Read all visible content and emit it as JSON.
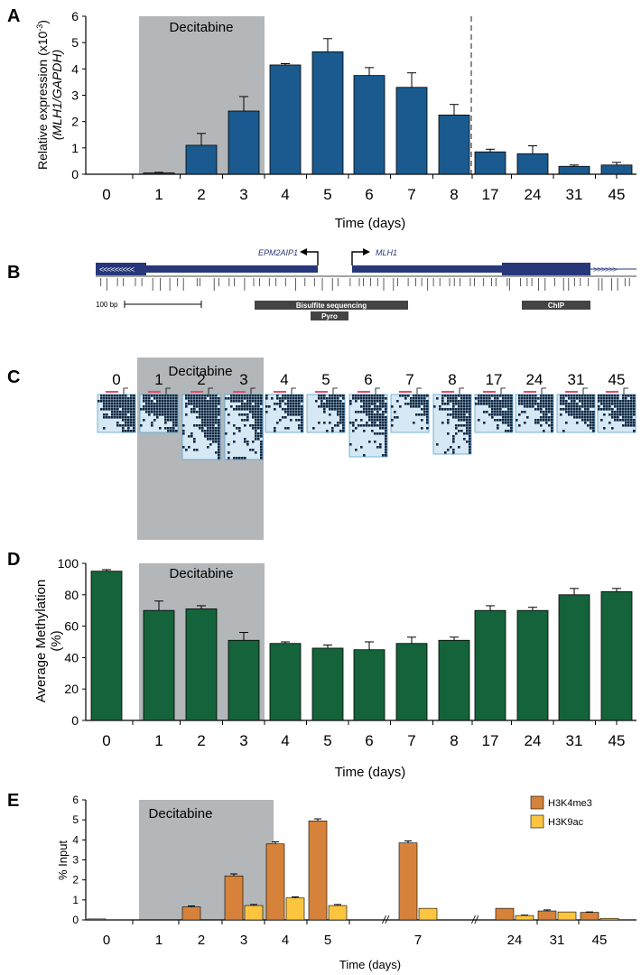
{
  "colors": {
    "expression": "#1a5a8e",
    "methylation": "#15633a",
    "h3k4me3": "#d6823a",
    "h3k9ac": "#fcc53f",
    "shade": "#b3b7ba",
    "gene": "#27377a",
    "methylated_cpg": "#0f2741",
    "unmethylated_cpg": "#d6e8f4"
  },
  "panels": {
    "a": {
      "letter": "A"
    },
    "b": {
      "letter": "B"
    },
    "c": {
      "letter": "C"
    },
    "d": {
      "letter": "D"
    },
    "e": {
      "letter": "E"
    }
  },
  "treatment_label": "Decitabine",
  "map": {
    "gene_left": "EPM2AIP1",
    "gene_right": "MLH1",
    "scale_label": "100 bp",
    "bisulfite_label": "Bisulfite sequencing",
    "pyro_label": "Pyro",
    "chip_label": "ChIP"
  },
  "clones": {
    "days": [
      "0",
      "1",
      "2",
      "3",
      "4",
      "5",
      "6",
      "7",
      "8",
      "17",
      "24",
      "31",
      "45"
    ],
    "methylated_fraction": [
      0.92,
      0.85,
      0.72,
      0.5,
      0.55,
      0.55,
      0.6,
      0.45,
      0.55,
      0.78,
      0.7,
      0.82,
      0.84
    ],
    "clone_rows": [
      14,
      14,
      24,
      24,
      14,
      14,
      23,
      14,
      22,
      14,
      14,
      14,
      14
    ]
  },
  "chart_data": [
    {
      "panel": "A",
      "type": "bar",
      "categories": [
        "0",
        "1",
        "2",
        "3",
        "4",
        "5",
        "6",
        "7",
        "8",
        "17",
        "24",
        "31",
        "45"
      ],
      "values": [
        0.0,
        0.05,
        1.1,
        2.4,
        4.15,
        4.65,
        3.75,
        3.3,
        2.25,
        0.85,
        0.78,
        0.3,
        0.35
      ],
      "errors": [
        0.0,
        0.02,
        0.45,
        0.55,
        0.05,
        0.5,
        0.3,
        0.55,
        0.4,
        0.1,
        0.3,
        0.05,
        0.1
      ],
      "ylabel_line1": "Relative expression (x10",
      "ylabel_exp": "-3",
      "ylabel_close": ")",
      "ylabel_line2": "(MLH1/GAPDH)",
      "xlabel": "Time (days)",
      "ylim": [
        0,
        6
      ],
      "yticks": [
        "0",
        "1",
        "2",
        "3",
        "4",
        "5",
        "6"
      ],
      "treatment_days": [
        "1",
        "2",
        "3"
      ]
    },
    {
      "panel": "D",
      "type": "bar",
      "categories": [
        "0",
        "1",
        "2",
        "3",
        "4",
        "5",
        "6",
        "7",
        "8",
        "17",
        "24",
        "31",
        "45"
      ],
      "values": [
        95,
        70,
        71,
        51,
        49,
        46,
        45,
        49,
        51,
        70,
        70,
        80,
        82
      ],
      "errors": [
        1,
        6,
        2,
        5,
        1,
        2,
        5,
        4,
        2,
        3,
        2,
        4,
        2
      ],
      "ylabel_line1": "Average Methylation",
      "ylabel_line2": "(%)",
      "xlabel": "Time (days)",
      "ylim": [
        0,
        100
      ],
      "yticks": [
        "0",
        "20",
        "40",
        "60",
        "80",
        "100"
      ],
      "treatment_days": [
        "1",
        "2",
        "3"
      ]
    },
    {
      "panel": "E",
      "type": "bar",
      "categories": [
        "0",
        "1",
        "2",
        "3",
        "4",
        "5",
        "7",
        "24",
        "31",
        "45"
      ],
      "break_marks": [
        "//",
        "//"
      ],
      "series": [
        {
          "name": "H3K4me3",
          "values": [
            0.05,
            0.0,
            0.65,
            2.2,
            3.8,
            4.95,
            3.85,
            0.58,
            0.45,
            0.38
          ],
          "errors": [
            0.0,
            0.0,
            0.05,
            0.1,
            0.1,
            0.1,
            0.1,
            0.0,
            0.05,
            0.02
          ]
        },
        {
          "name": "H3K9ac",
          "values": [
            0.0,
            0.0,
            0.0,
            0.72,
            1.1,
            0.72,
            0.58,
            0.22,
            0.4,
            0.08
          ],
          "errors": [
            0.0,
            0.0,
            0.0,
            0.05,
            0.05,
            0.05,
            0.0,
            0.02,
            0.0,
            0.0
          ]
        }
      ],
      "ylabel": "% Input",
      "xlabel": "Time (days)",
      "ylim": [
        0,
        6
      ],
      "yticks": [
        "0",
        "1",
        "2",
        "3",
        "4",
        "5",
        "6"
      ],
      "treatment_days": [
        "1",
        "2",
        "3"
      ],
      "legend": "top-right"
    }
  ]
}
